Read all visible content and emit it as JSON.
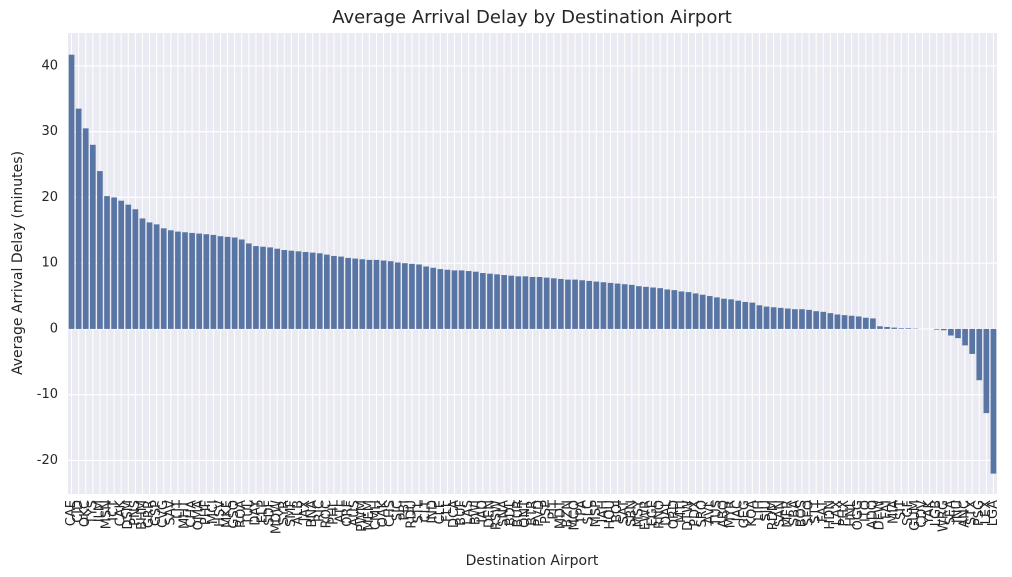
{
  "chart_data": {
    "type": "bar",
    "title": "Average Arrival Delay by Destination Airport",
    "x_label": "Destination Airport",
    "y_label": "Average Arrival Delay (minutes)",
    "color": "#5975a4",
    "grid": true,
    "ylim": [
      -25.1,
      45
    ],
    "yticks": [
      -20,
      -10,
      0,
      10,
      20,
      30,
      40
    ],
    "categories": [
      "CAE",
      "CID",
      "OKC",
      "TYS",
      "ILM",
      "MSN",
      "ICT",
      "CAK",
      "DSM",
      "PNS",
      "BHM",
      "GRR",
      "GSP",
      "CVG",
      "SAV",
      "LIT",
      "MHT",
      "CHA",
      "OMA",
      "PHF",
      "MCI",
      "HSV",
      "MKE",
      "GSO",
      "ROA",
      "TUL",
      "DAY",
      "ELP",
      "SDF",
      "MDW",
      "SYR",
      "SMF",
      "ALB",
      "JAX",
      "BNA",
      "RIC",
      "ROC",
      "PHL",
      "ATL",
      "ORF",
      "AUS",
      "PWM",
      "MEM",
      "CMH",
      "OAK",
      "CHS",
      "SJC",
      "PBI",
      "RDU",
      "STL",
      "CLT",
      "IND",
      "CLE",
      "FLL",
      "DCA",
      "BUF",
      "LAS",
      "BWI",
      "IAD",
      "DEN",
      "RSW",
      "SNA",
      "BDL",
      "BUR",
      "ONT",
      "BTR",
      "PVD",
      "PSP",
      "PIT",
      "MDT",
      "BZN",
      "MCO",
      "TPA",
      "SLC",
      "MSP",
      "IAH",
      "HOU",
      "BOI",
      "SAT",
      "SBN",
      "MSY",
      "EWR",
      "EGE",
      "RNO",
      "DAL",
      "ORD",
      "MTJ",
      "DTW",
      "PDX",
      "SRQ",
      "AVL",
      "TUS",
      "ABQ",
      "MYR",
      "JAC",
      "GEG",
      "KOA",
      "LIH",
      "SJU",
      "RDM",
      "SAN",
      "MFR",
      "SBA",
      "BOS",
      "SFO",
      "STT",
      "FAT",
      "HDN",
      "LAX",
      "PHX",
      "HNL",
      "OGG",
      "ITO",
      "ADQ",
      "DFW",
      "FAI",
      "MIA",
      "SIT",
      "SGF",
      "GUM",
      "CDV",
      "YAK",
      "LGB",
      "WRG",
      "SEA",
      "JNU",
      "ANC",
      "STX",
      "PSG",
      "LEX",
      "LGA"
    ],
    "values": [
      41.7,
      33.5,
      30.5,
      28.0,
      24.0,
      20.2,
      20.0,
      19.5,
      18.9,
      18.2,
      16.8,
      16.2,
      15.9,
      15.3,
      15.0,
      14.8,
      14.7,
      14.6,
      14.5,
      14.4,
      14.3,
      14.1,
      14.0,
      13.9,
      13.6,
      13.0,
      12.6,
      12.5,
      12.4,
      12.2,
      12.0,
      11.9,
      11.8,
      11.7,
      11.6,
      11.5,
      11.3,
      11.1,
      11.0,
      10.8,
      10.7,
      10.6,
      10.5,
      10.5,
      10.4,
      10.3,
      10.1,
      10.0,
      9.9,
      9.8,
      9.5,
      9.3,
      9.1,
      9.0,
      8.9,
      8.9,
      8.8,
      8.7,
      8.5,
      8.4,
      8.3,
      8.2,
      8.1,
      8.0,
      8.0,
      7.9,
      7.9,
      7.8,
      7.7,
      7.6,
      7.5,
      7.5,
      7.4,
      7.3,
      7.2,
      7.1,
      7.0,
      6.9,
      6.8,
      6.7,
      6.5,
      6.4,
      6.3,
      6.2,
      6.0,
      5.9,
      5.7,
      5.6,
      5.4,
      5.2,
      5.0,
      4.8,
      4.6,
      4.5,
      4.3,
      4.1,
      4.0,
      3.6,
      3.4,
      3.3,
      3.2,
      3.1,
      3.0,
      3.0,
      2.9,
      2.7,
      2.6,
      2.4,
      2.2,
      2.1,
      2.0,
      1.9,
      1.7,
      1.6,
      0.4,
      0.3,
      0.2,
      0.1,
      0.1,
      0.05,
      0.0,
      0.0,
      -0.1,
      -0.2,
      -1.0,
      -1.4,
      -2.5,
      -3.8,
      -7.8,
      -12.8,
      -22.0
    ]
  }
}
